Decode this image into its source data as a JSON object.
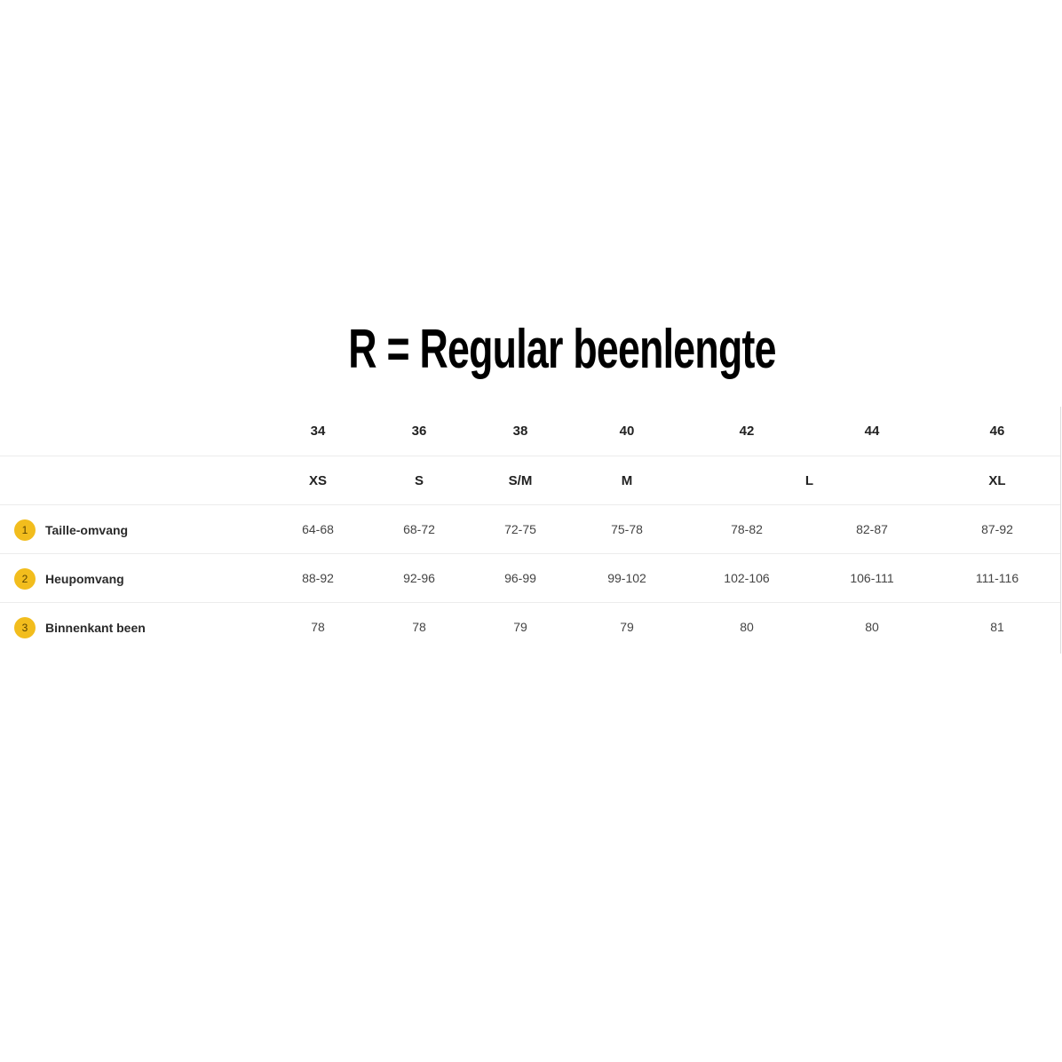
{
  "title": "R = Regular beenlengte",
  "table": {
    "sizes_numeric": [
      "34",
      "36",
      "38",
      "40",
      "42",
      "44",
      "46"
    ],
    "sizes_letter": [
      {
        "label": "XS",
        "span": 1
      },
      {
        "label": "S",
        "span": 1
      },
      {
        "label": "S/M",
        "span": 1
      },
      {
        "label": "M",
        "span": 1
      },
      {
        "label": "L",
        "span": 2
      },
      {
        "label": "XL",
        "span": 1
      }
    ],
    "rows": [
      {
        "number": "1",
        "label": "Taille-omvang",
        "values": [
          "64-68",
          "68-72",
          "72-75",
          "75-78",
          "78-82",
          "82-87",
          "87-92"
        ]
      },
      {
        "number": "2",
        "label": "Heupomvang",
        "values": [
          "88-92",
          "92-96",
          "96-99",
          "99-102",
          "102-106",
          "106-111",
          "111-116"
        ]
      },
      {
        "number": "3",
        "label": "Binnenkant been",
        "values": [
          "78",
          "78",
          "79",
          "79",
          "80",
          "80",
          "81"
        ]
      }
    ],
    "badge_color": "#f2bd1d"
  }
}
